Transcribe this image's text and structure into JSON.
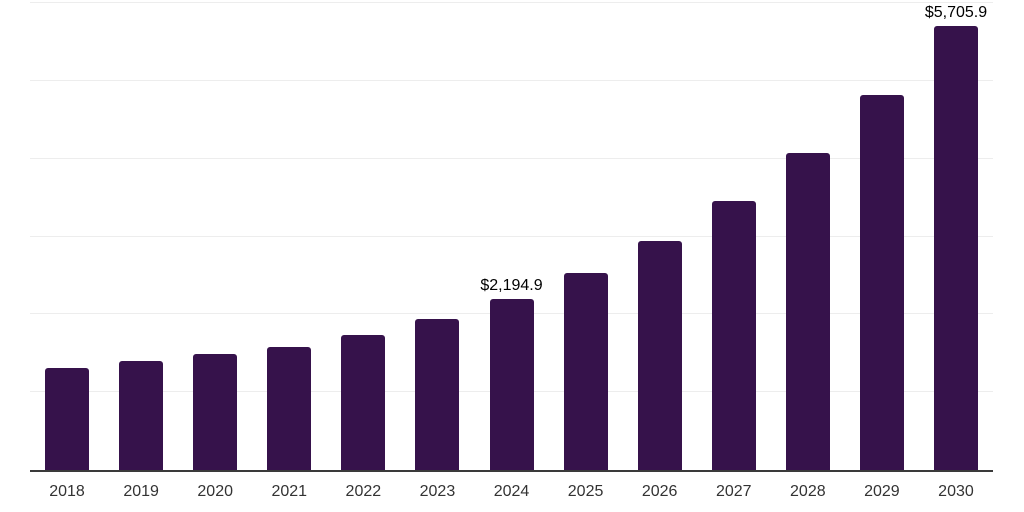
{
  "chart_data": {
    "type": "bar",
    "title": "",
    "xlabel": "",
    "ylabel": "",
    "categories": [
      "2018",
      "2019",
      "2020",
      "2021",
      "2022",
      "2023",
      "2024",
      "2025",
      "2026",
      "2027",
      "2028",
      "2029",
      "2030"
    ],
    "values": [
      1315,
      1400,
      1487,
      1583,
      1734,
      1939,
      2194.9,
      2526,
      2944,
      3454,
      4079,
      4824,
      5705.9
    ],
    "data_labels": {
      "2024": "$2,194.9",
      "2030": "$5,705.9"
    },
    "ylim": [
      0,
      6000
    ],
    "grid_step": 1000,
    "grid": true,
    "legend": false,
    "y_tick_labels_visible": false,
    "colors": {
      "bar": "#36124B",
      "axis": "#3a3a3a",
      "grid": "#ededed",
      "data_label": "#000000",
      "tick_label": "#333333",
      "background": "#ffffff"
    }
  }
}
